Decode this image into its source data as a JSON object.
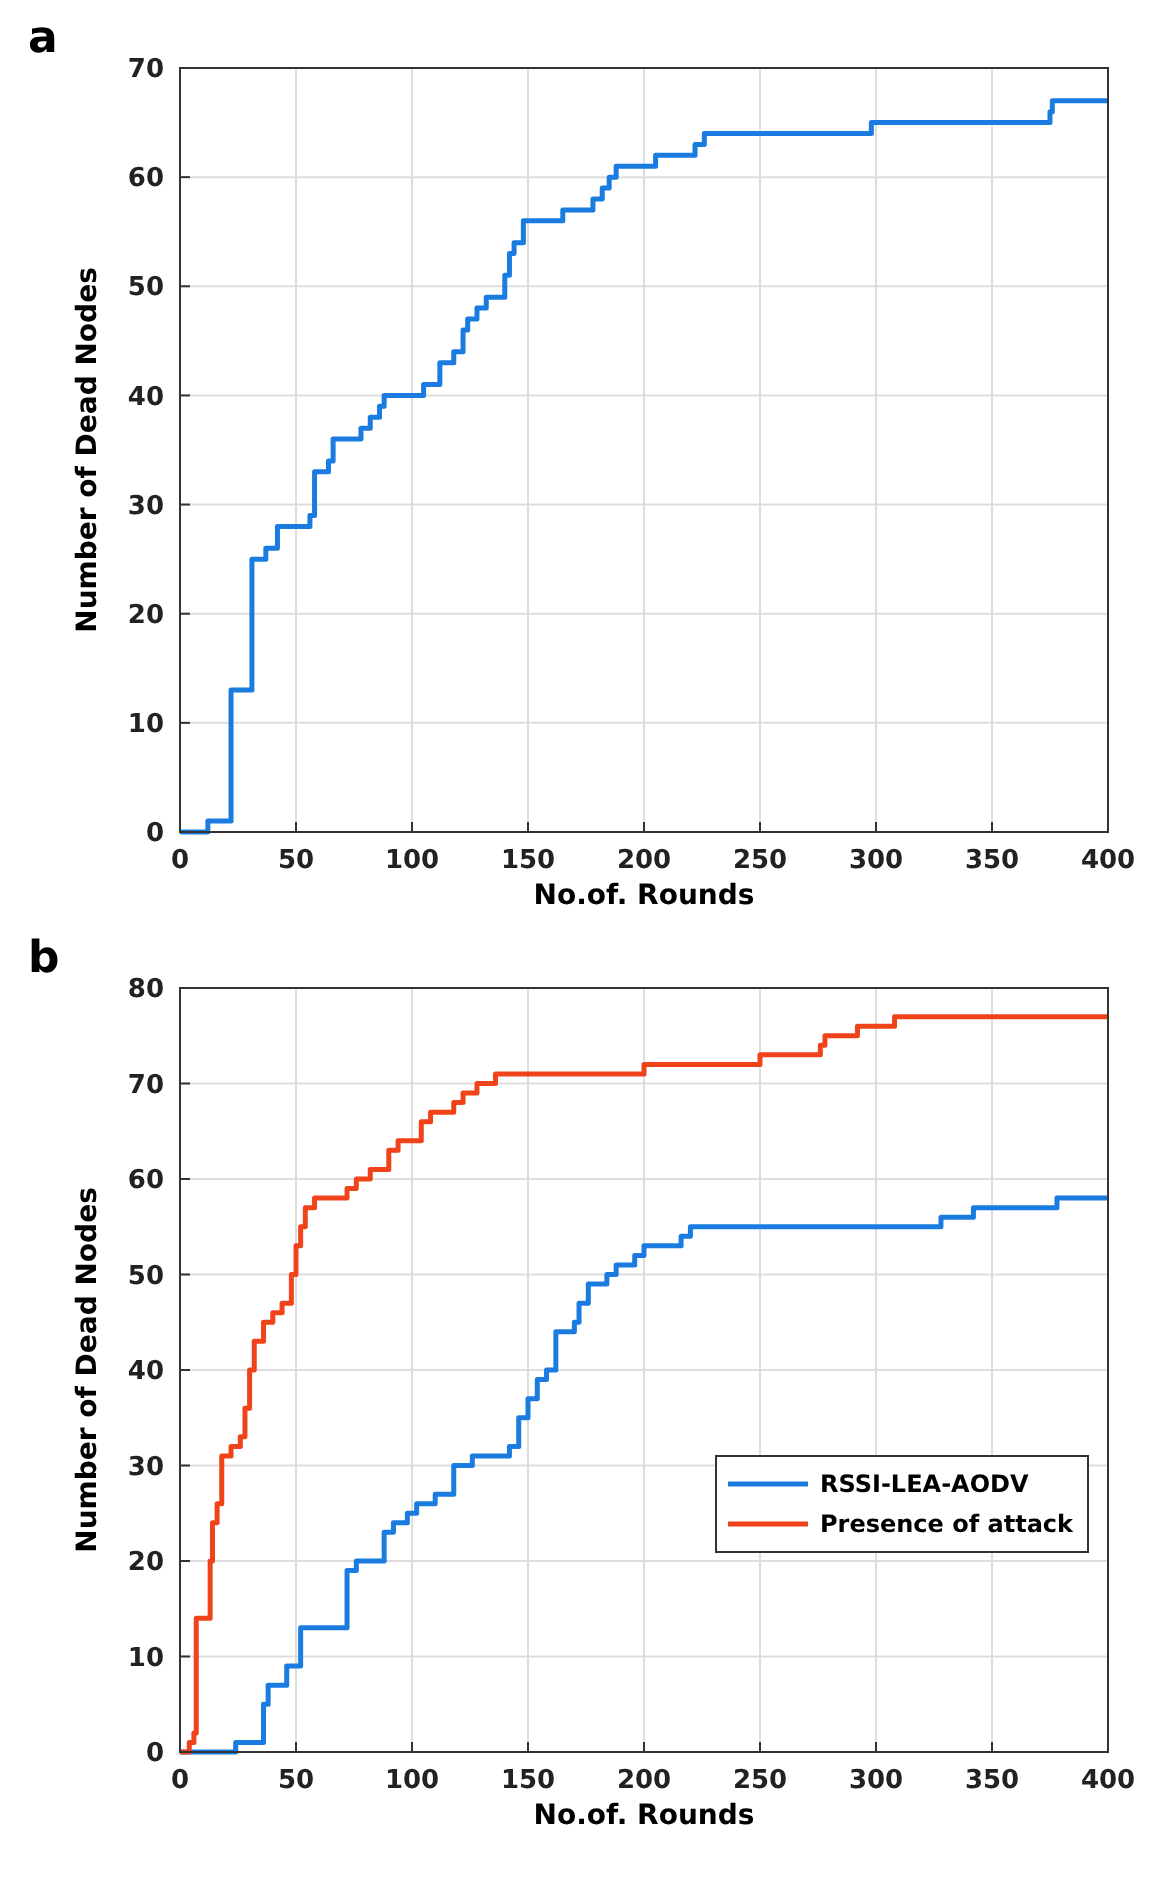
{
  "chart_data": [
    {
      "type": "step",
      "title": "a",
      "xlabel": "No.of. Rounds",
      "ylabel": "Number of Dead Nodes",
      "xlim": [
        0,
        400
      ],
      "ylim": [
        0,
        70
      ],
      "xticks": [
        0,
        50,
        100,
        150,
        200,
        250,
        300,
        350,
        400
      ],
      "yticks": [
        0,
        10,
        20,
        30,
        40,
        50,
        60,
        70
      ],
      "grid": true,
      "legend": false,
      "series": [
        {
          "color": "#1a7be0",
          "x": [
            0,
            12,
            22,
            31,
            37,
            42,
            56,
            58,
            64,
            66,
            76,
            78,
            82,
            86,
            88,
            105,
            112,
            118,
            122,
            124,
            128,
            132,
            140,
            142,
            144,
            148,
            165,
            178,
            182,
            185,
            188,
            205,
            222,
            226,
            298,
            375,
            376,
            400
          ],
          "values": [
            0,
            1,
            13,
            25,
            26,
            28,
            29,
            33,
            34,
            36,
            36,
            37,
            38,
            39,
            40,
            41,
            43,
            44,
            46,
            47,
            48,
            49,
            51,
            53,
            54,
            56,
            57,
            58,
            59,
            60,
            61,
            62,
            63,
            64,
            65,
            66,
            67,
            67
          ]
        }
      ]
    },
    {
      "type": "step",
      "title": "b",
      "xlabel": "No.of. Rounds",
      "ylabel": "Number of Dead Nodes",
      "xlim": [
        0,
        400
      ],
      "ylim": [
        0,
        80
      ],
      "xticks": [
        0,
        50,
        100,
        150,
        200,
        250,
        300,
        350,
        400
      ],
      "yticks": [
        0,
        10,
        20,
        30,
        40,
        50,
        60,
        70,
        80
      ],
      "grid": true,
      "legend": "bottom right",
      "series": [
        {
          "name": "RSSI-LEA-AODV",
          "color": "#1a7be0",
          "x": [
            0,
            24,
            36,
            38,
            46,
            52,
            72,
            76,
            88,
            92,
            98,
            102,
            110,
            118,
            126,
            142,
            146,
            150,
            154,
            158,
            162,
            170,
            172,
            176,
            184,
            188,
            196,
            200,
            216,
            220,
            328,
            342,
            378,
            400
          ],
          "values": [
            0,
            1,
            5,
            7,
            9,
            13,
            19,
            20,
            23,
            24,
            25,
            26,
            27,
            30,
            31,
            32,
            35,
            37,
            39,
            40,
            44,
            45,
            47,
            49,
            50,
            51,
            52,
            53,
            54,
            55,
            56,
            57,
            58,
            58
          ]
        },
        {
          "name": "Presence of attack",
          "color": "#f0431a",
          "x": [
            0,
            4,
            6,
            7,
            13,
            14,
            16,
            18,
            22,
            26,
            28,
            30,
            32,
            36,
            40,
            44,
            48,
            50,
            52,
            54,
            58,
            72,
            76,
            82,
            90,
            94,
            104,
            108,
            118,
            122,
            128,
            136,
            200,
            250,
            276,
            278,
            292,
            308,
            400
          ],
          "values": [
            0,
            1,
            2,
            14,
            20,
            24,
            26,
            31,
            32,
            33,
            36,
            40,
            43,
            45,
            46,
            47,
            50,
            53,
            55,
            57,
            58,
            59,
            60,
            61,
            63,
            64,
            66,
            67,
            68,
            69,
            70,
            71,
            72,
            73,
            74,
            75,
            76,
            77,
            77
          ]
        }
      ]
    }
  ]
}
